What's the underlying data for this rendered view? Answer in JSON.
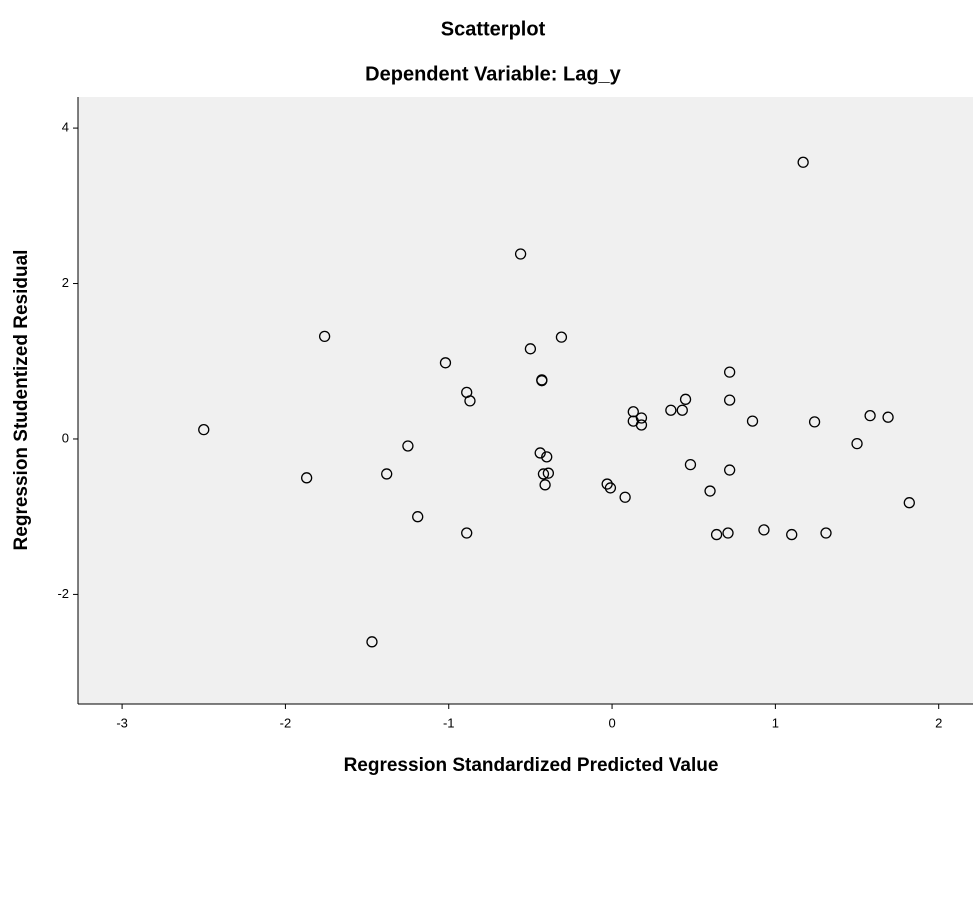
{
  "chart_data": {
    "type": "scatter",
    "title": "Scatterplot",
    "subtitle": "Dependent Variable: Lag_y",
    "x_label": "Regression Standardized Predicted Value",
    "y_label": "Regression Studentized Residual",
    "xlim": [
      -3.27,
      2.21
    ],
    "ylim": [
      -3.41,
      4.4
    ],
    "xticks": [
      -3,
      -2,
      -1,
      0,
      1,
      2
    ],
    "yticks": [
      -2,
      0,
      2,
      4
    ],
    "color": "#000000",
    "background": "#f0f0f0",
    "x": [
      1.17,
      -0.56,
      -1.76,
      -0.31,
      -0.5,
      -1.02,
      -0.43,
      -0.43,
      0.72,
      -0.89,
      -0.87,
      0.45,
      0.72,
      0.36,
      0.43,
      0.13,
      0.18,
      0.13,
      0.18,
      0.86,
      1.24,
      1.58,
      1.69,
      -2.5,
      -1.25,
      1.5,
      -0.44,
      -0.4,
      -0.42,
      -0.39,
      -1.38,
      -1.87,
      -0.41,
      0.48,
      0.72,
      -0.03,
      -0.01,
      0.08,
      0.6,
      1.82,
      -1.19,
      -0.89,
      0.93,
      0.71,
      0.64,
      1.1,
      1.31,
      -1.47
    ],
    "y": [
      3.56,
      2.38,
      1.32,
      1.31,
      1.16,
      0.98,
      0.76,
      0.75,
      0.86,
      0.6,
      0.49,
      0.51,
      0.5,
      0.37,
      0.37,
      0.35,
      0.27,
      0.23,
      0.18,
      0.23,
      0.22,
      0.3,
      0.28,
      0.12,
      -0.09,
      -0.06,
      -0.18,
      -0.23,
      -0.45,
      -0.44,
      -0.45,
      -0.5,
      -0.59,
      -0.33,
      -0.4,
      -0.58,
      -0.63,
      -0.75,
      -0.67,
      -0.82,
      -1.0,
      -1.21,
      -1.17,
      -1.21,
      -1.23,
      -1.23,
      -1.21,
      -2.61
    ]
  }
}
